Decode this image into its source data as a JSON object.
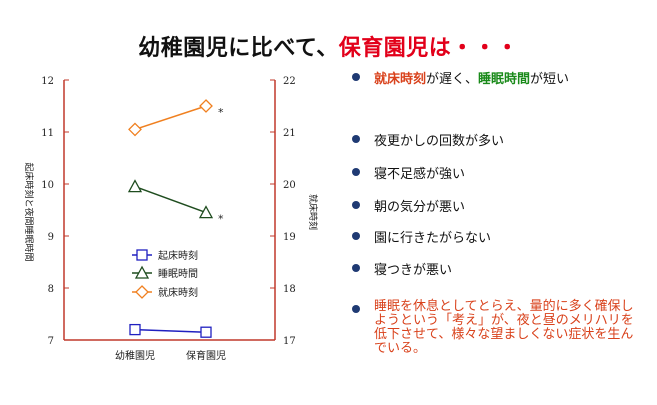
{
  "title": {
    "main": "幼稚園児に比べて、",
    "accent": "保育園児は・・・"
  },
  "bullets": [
    {
      "parts": [
        {
          "text": "就床時刻",
          "style": "red"
        },
        {
          "text": "が遅く、",
          "style": ""
        },
        {
          "text": "睡眠時間",
          "style": "green"
        },
        {
          "text": "が短い",
          "style": ""
        }
      ]
    },
    {
      "parts": [
        {
          "text": "夜更かしの回数が多い",
          "style": ""
        }
      ]
    },
    {
      "parts": [
        {
          "text": "寝不足感が強い",
          "style": ""
        }
      ]
    },
    {
      "parts": [
        {
          "text": "朝の気分が悪い",
          "style": ""
        }
      ]
    },
    {
      "parts": [
        {
          "text": "園に行きたがらない",
          "style": ""
        }
      ]
    },
    {
      "parts": [
        {
          "text": "寝つきが悪い",
          "style": ""
        }
      ]
    }
  ],
  "note": "睡眠を休息としてとらえ、量的に多く確保しようという「考え」が、夜と昼のメリハリを低下させて、様々な望ましくない症状を生んでいる。",
  "chart_data": {
    "type": "line",
    "categories": [
      "幼稚園児",
      "保育園児"
    ],
    "left_axis": {
      "label": "起床時刻と夜間睡眠時間",
      "ticks": [
        "7",
        "8",
        "9",
        "10",
        "11",
        "12"
      ],
      "range": [
        7,
        12
      ]
    },
    "right_axis": {
      "label": "就床時刻",
      "ticks": [
        "17",
        "18",
        "19",
        "20",
        "21",
        "22"
      ],
      "range": [
        17,
        22
      ]
    },
    "series": [
      {
        "name": "起床時刻",
        "axis": "left",
        "marker": "square",
        "color": "#2020c0",
        "values": [
          7.2,
          7.15
        ],
        "annotations": [
          "",
          ""
        ]
      },
      {
        "name": "睡眠時間",
        "axis": "left",
        "marker": "triangle",
        "color": "#1f4d1f",
        "values": [
          9.95,
          9.45
        ],
        "annotations": [
          "",
          "*"
        ]
      },
      {
        "name": "就床時刻",
        "axis": "right",
        "marker": "diamond",
        "color": "#f08020",
        "values": [
          21.05,
          21.5
        ],
        "annotations": [
          "",
          "*"
        ]
      }
    ],
    "legend_position": "lower-middle",
    "grid": false
  }
}
